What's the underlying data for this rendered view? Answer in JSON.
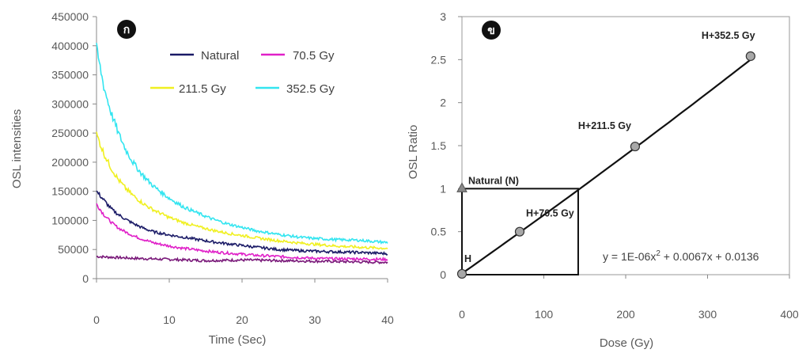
{
  "chart_data": [
    {
      "type": "line",
      "panel_label": "ก",
      "xlabel": "Time (Sec)",
      "ylabel": "OSL intensities",
      "xlim": [
        0,
        40
      ],
      "ylim": [
        0,
        450000
      ],
      "x_ticks": [
        "0",
        "10",
        "20",
        "30",
        "40"
      ],
      "y_ticks": [
        "0",
        "50000",
        "100000",
        "150000",
        "200000",
        "250000",
        "300000",
        "350000",
        "400000",
        "450000"
      ],
      "grid": false,
      "legend_position": "top-right",
      "series": [
        {
          "name": "Natural",
          "color": "#1a1a66",
          "points": [
            [
              0,
              150000
            ],
            [
              1,
              135000
            ],
            [
              2,
              120000
            ],
            [
              3,
              110000
            ],
            [
              4,
              102000
            ],
            [
              5,
              95000
            ],
            [
              6,
              89000
            ],
            [
              7,
              84000
            ],
            [
              8,
              80000
            ],
            [
              10,
              75000
            ],
            [
              12,
              71000
            ],
            [
              14,
              67000
            ],
            [
              16,
              63000
            ],
            [
              18,
              60000
            ],
            [
              20,
              57000
            ],
            [
              22,
              54000
            ],
            [
              25,
              50000
            ],
            [
              28,
              48000
            ],
            [
              30,
              47000
            ],
            [
              33,
              46000
            ],
            [
              36,
              45000
            ],
            [
              40,
              43000
            ]
          ]
        },
        {
          "name": "70.5 Gy",
          "color": "#e020c8",
          "points": [
            [
              0,
              128000
            ],
            [
              1,
              110000
            ],
            [
              2,
              97000
            ],
            [
              3,
              87000
            ],
            [
              4,
              80000
            ],
            [
              5,
              74000
            ],
            [
              6,
              69000
            ],
            [
              7,
              65000
            ],
            [
              8,
              61000
            ],
            [
              10,
              56000
            ],
            [
              12,
              52000
            ],
            [
              14,
              49000
            ],
            [
              16,
              46000
            ],
            [
              18,
              44000
            ],
            [
              20,
              42000
            ],
            [
              22,
              40000
            ],
            [
              25,
              38000
            ],
            [
              28,
              36000
            ],
            [
              30,
              35000
            ],
            [
              33,
              34000
            ],
            [
              36,
              34000
            ],
            [
              40,
              33000
            ]
          ]
        },
        {
          "name": "211.5 Gy",
          "color": "#f0f020",
          "points": [
            [
              0,
              248000
            ],
            [
              1,
              215000
            ],
            [
              2,
              190000
            ],
            [
              3,
              170000
            ],
            [
              4,
              155000
            ],
            [
              5,
              143000
            ],
            [
              6,
              133000
            ],
            [
              7,
              124000
            ],
            [
              8,
              117000
            ],
            [
              10,
              105000
            ],
            [
              12,
              96000
            ],
            [
              14,
              89000
            ],
            [
              16,
              83000
            ],
            [
              18,
              78000
            ],
            [
              20,
              74000
            ],
            [
              22,
              70000
            ],
            [
              25,
              65000
            ],
            [
              28,
              61000
            ],
            [
              30,
              59000
            ],
            [
              33,
              56000
            ],
            [
              36,
              54000
            ],
            [
              40,
              52000
            ]
          ]
        },
        {
          "name": "352.5 Gy",
          "color": "#33e5f0",
          "points": [
            [
              0,
              395000
            ],
            [
              1,
              330000
            ],
            [
              2,
              285000
            ],
            [
              3,
              250000
            ],
            [
              4,
              222000
            ],
            [
              5,
              200000
            ],
            [
              6,
              183000
            ],
            [
              7,
              169000
            ],
            [
              8,
              157000
            ],
            [
              10,
              138000
            ],
            [
              12,
              123000
            ],
            [
              14,
              112000
            ],
            [
              16,
              102000
            ],
            [
              18,
              94000
            ],
            [
              20,
              88000
            ],
            [
              22,
              82000
            ],
            [
              25,
              76000
            ],
            [
              28,
              71000
            ],
            [
              30,
              69000
            ],
            [
              33,
              67000
            ],
            [
              36,
              66000
            ],
            [
              40,
              62000
            ]
          ]
        },
        {
          "name": "",
          "color": "#7a1a7a",
          "points": [
            [
              0,
              38000
            ],
            [
              5,
              35000
            ],
            [
              10,
              33000
            ],
            [
              15,
              31000
            ],
            [
              20,
              32000
            ],
            [
              25,
              31000
            ],
            [
              30,
              30000
            ],
            [
              35,
              29000
            ],
            [
              40,
              28000
            ]
          ]
        }
      ]
    },
    {
      "type": "scatter",
      "panel_label": "ข",
      "xlabel": "Dose (Gy)",
      "ylabel": "OSL Ratio",
      "xlim": [
        0,
        400
      ],
      "ylim": [
        0,
        3
      ],
      "x_ticks": [
        "0",
        "100",
        "200",
        "300",
        "400"
      ],
      "y_ticks": [
        "0",
        "0.5",
        "1",
        "1.5",
        "2",
        "2.5",
        "3"
      ],
      "grid": false,
      "points": [
        {
          "label": "H",
          "x": 0,
          "y": 0.01
        },
        {
          "label": "H+70.5 Gy",
          "x": 70.5,
          "y": 0.5
        },
        {
          "label": "H+211.5 Gy",
          "x": 211.5,
          "y": 1.49
        },
        {
          "label": "H+352.5 Gy",
          "x": 352.5,
          "y": 2.54
        }
      ],
      "natural_point": {
        "label": "Natural (N)",
        "x": 0,
        "y": 1.0
      },
      "fit": {
        "a": 1e-06,
        "b": 0.0067,
        "c": 0.0136
      },
      "equation_text": {
        "prefix": "y = 1E-06x",
        "sup": "2",
        "suffix": " + 0.0067x + 0.0136"
      },
      "projection_box": {
        "x": 142,
        "y": 1.0
      }
    }
  ]
}
